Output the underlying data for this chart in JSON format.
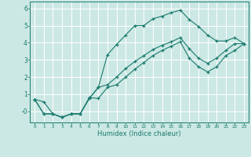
{
  "xlabel": "Humidex (Indice chaleur)",
  "bg_color": "#cce8e4",
  "grid_color": "#ffffff",
  "line_color": "#1a7a6e",
  "xlim": [
    -0.5,
    23.5
  ],
  "ylim": [
    -0.65,
    6.4
  ],
  "xticks": [
    0,
    1,
    2,
    3,
    4,
    5,
    6,
    7,
    8,
    9,
    10,
    11,
    12,
    13,
    14,
    15,
    16,
    17,
    18,
    19,
    20,
    21,
    22,
    23
  ],
  "yticks": [
    0,
    1,
    2,
    3,
    4,
    5,
    6
  ],
  "ytick_labels": [
    "-0",
    "1",
    "2",
    "3",
    "4",
    "5",
    "6"
  ],
  "line1_x": [
    0,
    1,
    2,
    3,
    4,
    5,
    6,
    7,
    8,
    9,
    10,
    11,
    12,
    13,
    14,
    15,
    16,
    17,
    18,
    19,
    20,
    21,
    22,
    23
  ],
  "line1_y": [
    0.7,
    0.55,
    -0.15,
    -0.35,
    -0.15,
    -0.15,
    0.75,
    1.4,
    3.3,
    3.9,
    4.45,
    5.0,
    5.0,
    5.4,
    5.55,
    5.75,
    5.9,
    5.35,
    4.95,
    4.45,
    4.1,
    4.1,
    4.3,
    3.95
  ],
  "line2_x": [
    0,
    1,
    2,
    3,
    4,
    5,
    6,
    7,
    8,
    9,
    10,
    11,
    12,
    13,
    14,
    15,
    16,
    17,
    18,
    19,
    20,
    21,
    22,
    23
  ],
  "line2_y": [
    0.7,
    -0.15,
    -0.15,
    -0.35,
    -0.15,
    -0.15,
    0.8,
    0.75,
    1.4,
    1.55,
    2.0,
    2.45,
    2.85,
    3.25,
    3.55,
    3.8,
    4.05,
    3.1,
    2.6,
    2.3,
    2.6,
    3.25,
    3.55,
    3.95
  ],
  "line3_x": [
    0,
    1,
    2,
    3,
    4,
    5,
    6,
    7,
    8,
    9,
    10,
    11,
    12,
    13,
    14,
    15,
    16,
    17,
    18,
    19,
    20,
    21,
    22,
    23
  ],
  "line3_y": [
    0.7,
    -0.15,
    -0.15,
    -0.35,
    -0.15,
    -0.15,
    0.75,
    1.4,
    1.55,
    2.0,
    2.5,
    2.9,
    3.25,
    3.6,
    3.85,
    4.05,
    4.3,
    3.65,
    3.1,
    2.8,
    3.1,
    3.55,
    3.95,
    3.95
  ]
}
